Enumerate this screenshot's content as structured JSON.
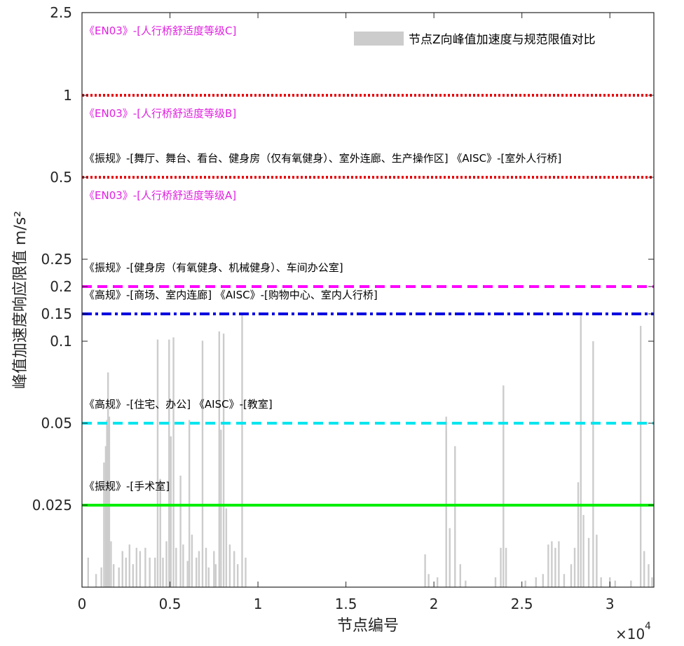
{
  "chart_data": {
    "type": "area",
    "xlabel": "节点编号",
    "ylabel": "峰值加速度响应限值 m/s²",
    "x_multiplier_label": "×10",
    "x_multiplier_exp": "4",
    "xlim": [
      0,
      32500
    ],
    "ylim_display_range": [
      0,
      2.5
    ],
    "y_scale": "piecewise (compressed upper range)",
    "x_ticks": [
      {
        "value": 0,
        "label": "0"
      },
      {
        "value": 5000,
        "label": "0.5"
      },
      {
        "value": 10000,
        "label": "1"
      },
      {
        "value": 15000,
        "label": "1.5"
      },
      {
        "value": 20000,
        "label": "2"
      },
      {
        "value": 25000,
        "label": "2.5"
      },
      {
        "value": 30000,
        "label": "3"
      }
    ],
    "y_ticks": [
      {
        "value": 0.025,
        "label": "0.025"
      },
      {
        "value": 0.05,
        "label": "0.05"
      },
      {
        "value": 0.1,
        "label": "0.1"
      },
      {
        "value": 0.15,
        "label": "0.15"
      },
      {
        "value": 0.2,
        "label": "0.2"
      },
      {
        "value": 0.25,
        "label": "0.25"
      },
      {
        "value": 0.5,
        "label": "0.5"
      },
      {
        "value": 1,
        "label": "1"
      },
      {
        "value": 2.5,
        "label": "2.5"
      }
    ],
    "legend": {
      "label": "节点Z向峰值加速度与规范限值对比",
      "color": "#cccccc",
      "position": "top-right"
    },
    "grid": false,
    "limit_lines": [
      {
        "value": 1.0,
        "color": "#e8000b",
        "style": "dotted"
      },
      {
        "value": 0.5,
        "color": "#e8000b",
        "style": "dotted"
      },
      {
        "value": 0.2,
        "color": "#ff00ff",
        "style": "dashed"
      },
      {
        "value": 0.15,
        "color": "#0000e0",
        "style": "dashdot"
      },
      {
        "value": 0.05,
        "color": "#00e5ee",
        "style": "dashed"
      },
      {
        "value": 0.025,
        "color": "#00ee00",
        "style": "solid"
      }
    ],
    "annotations": [
      {
        "text": "《EN03》-[人行桥舒适度等级C]",
        "color": "#e020e0",
        "anchor_value": 2.5,
        "offset": 1
      },
      {
        "text": "《EN03》-[人行桥舒适度等级B]",
        "color": "#e020e0",
        "anchor_value": 1.0,
        "offset": 1
      },
      {
        "text": "《振规》-[舞厅、舞台、看台、健身房（仅有氧健身）、室外连廊、生产操作区] 《AISC》-[室外人行桥]",
        "color": "#000000",
        "anchor_value": 0.5,
        "offset": -1
      },
      {
        "text": "《EN03》-[人行桥舒适度等级A]",
        "color": "#e020e0",
        "anchor_value": 0.5,
        "offset": 1
      },
      {
        "text": "《振规》-[健身房（有氧健身、机械健身）、车间办公室]",
        "color": "#000000",
        "anchor_value": 0.2,
        "offset": -1
      },
      {
        "text": "《高规》-[商场、室内连廊] 《AISC》-[购物中心、室内人行桥]",
        "color": "#000000",
        "anchor_value": 0.15,
        "offset": -1
      },
      {
        "text": "《高规》-[住宅、办公] 《AISC》-[教室]",
        "color": "#000000",
        "anchor_value": 0.05,
        "offset": -1
      },
      {
        "text": "《振规》-[手术室]",
        "color": "#000000",
        "anchor_value": 0.025,
        "offset": -1
      }
    ],
    "series": [
      {
        "name": "节点Z向峰值加速度与规范限值对比",
        "color": "#cccccc",
        "points": [
          [
            350,
            0.009
          ],
          [
            800,
            0.004
          ],
          [
            1100,
            0.006
          ],
          [
            1250,
            0.038
          ],
          [
            1350,
            0.043
          ],
          [
            1420,
            0.052
          ],
          [
            1480,
            0.081
          ],
          [
            1550,
            0.054
          ],
          [
            1650,
            0.014
          ],
          [
            1800,
            0.007
          ],
          [
            2100,
            0.006
          ],
          [
            2300,
            0.011
          ],
          [
            2500,
            0.009
          ],
          [
            2700,
            0.013
          ],
          [
            2900,
            0.007
          ],
          [
            3100,
            0.012
          ],
          [
            3300,
            0.011
          ],
          [
            3600,
            0.012
          ],
          [
            3850,
            0.009
          ],
          [
            4150,
            0.009
          ],
          [
            4300,
            0.103
          ],
          [
            4450,
            0.033
          ],
          [
            4600,
            0.009
          ],
          [
            4800,
            0.014
          ],
          [
            4950,
            0.103
          ],
          [
            5050,
            0.046
          ],
          [
            5200,
            0.107
          ],
          [
            5350,
            0.012
          ],
          [
            5600,
            0.034
          ],
          [
            5750,
            0.013
          ],
          [
            6000,
            0.008
          ],
          [
            6100,
            0.052
          ],
          [
            6250,
            0.016
          ],
          [
            6500,
            0.009
          ],
          [
            6650,
            0.011
          ],
          [
            6850,
            0.101
          ],
          [
            7050,
            0.012
          ],
          [
            7200,
            0.006
          ],
          [
            7500,
            0.011
          ],
          [
            7600,
            0.007
          ],
          [
            7800,
            0.118
          ],
          [
            7900,
            0.048
          ],
          [
            8050,
            0.114
          ],
          [
            8200,
            0.024
          ],
          [
            8400,
            0.013
          ],
          [
            8650,
            0.011
          ],
          [
            8850,
            0.007
          ],
          [
            9100,
            0.148
          ],
          [
            9300,
            0.009
          ],
          [
            19500,
            0.01
          ],
          [
            19700,
            0.004
          ],
          [
            20200,
            0.003
          ],
          [
            20700,
            0.054
          ],
          [
            20900,
            0.018
          ],
          [
            21200,
            0.043
          ],
          [
            21500,
            0.007
          ],
          [
            21800,
            0.002
          ],
          [
            23500,
            0.003
          ],
          [
            23800,
            0.012
          ],
          [
            23950,
            0.073
          ],
          [
            24100,
            0.012
          ],
          [
            25200,
            0.002
          ],
          [
            25800,
            0.003
          ],
          [
            26200,
            0.004
          ],
          [
            26500,
            0.013
          ],
          [
            26700,
            0.014
          ],
          [
            26900,
            0.012
          ],
          [
            27100,
            0.014
          ],
          [
            27400,
            0.004
          ],
          [
            27800,
            0.007
          ],
          [
            28000,
            0.012
          ],
          [
            28200,
            0.032
          ],
          [
            28350,
            0.148
          ],
          [
            28500,
            0.022
          ],
          [
            28800,
            0.015
          ],
          [
            29050,
            0.1
          ],
          [
            29250,
            0.016
          ],
          [
            29500,
            0.003
          ],
          [
            30000,
            0.003
          ],
          [
            30300,
            0.002
          ],
          [
            31200,
            0.002
          ],
          [
            31750,
            0.128
          ],
          [
            31950,
            0.011
          ],
          [
            32200,
            0.007
          ],
          [
            32400,
            0.003
          ]
        ]
      }
    ]
  }
}
